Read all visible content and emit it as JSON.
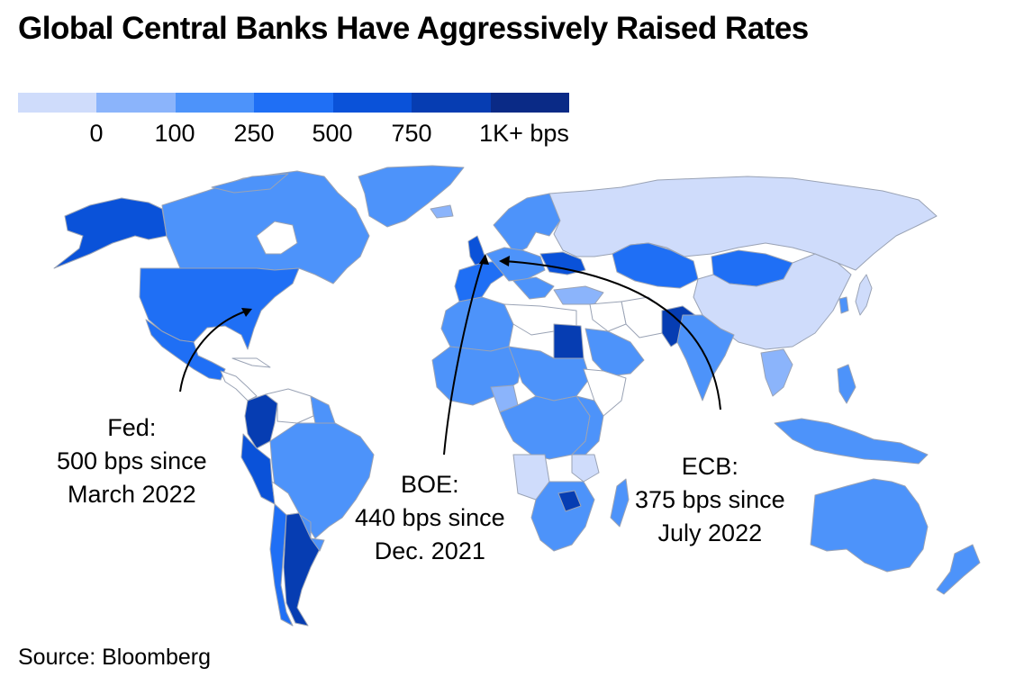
{
  "title": "Global Central Banks Have Aggressively Raised Rates",
  "legend": {
    "colors": [
      "#cfdcfb",
      "#8bb4fb",
      "#4d93fa",
      "#1f6ff5",
      "#0a52d9",
      "#063db2",
      "#0a2a86"
    ],
    "labels": [
      "0",
      "100",
      "250",
      "500",
      "750",
      "1K+ bps"
    ]
  },
  "annotations": {
    "fed": {
      "line1": "Fed:",
      "line2": "500 bps since",
      "line3": "March 2022"
    },
    "boe": {
      "line1": "BOE:",
      "line2": "440 bps since",
      "line3": "Dec. 2021"
    },
    "ecb": {
      "line1": "ECB:",
      "line2": "375 bps since",
      "line3": "July 2022"
    }
  },
  "colors": {
    "no_data": "#ffffff",
    "border": "#9aa3b5",
    "arrow": "#000000"
  },
  "source": "Source: Bloomberg"
}
